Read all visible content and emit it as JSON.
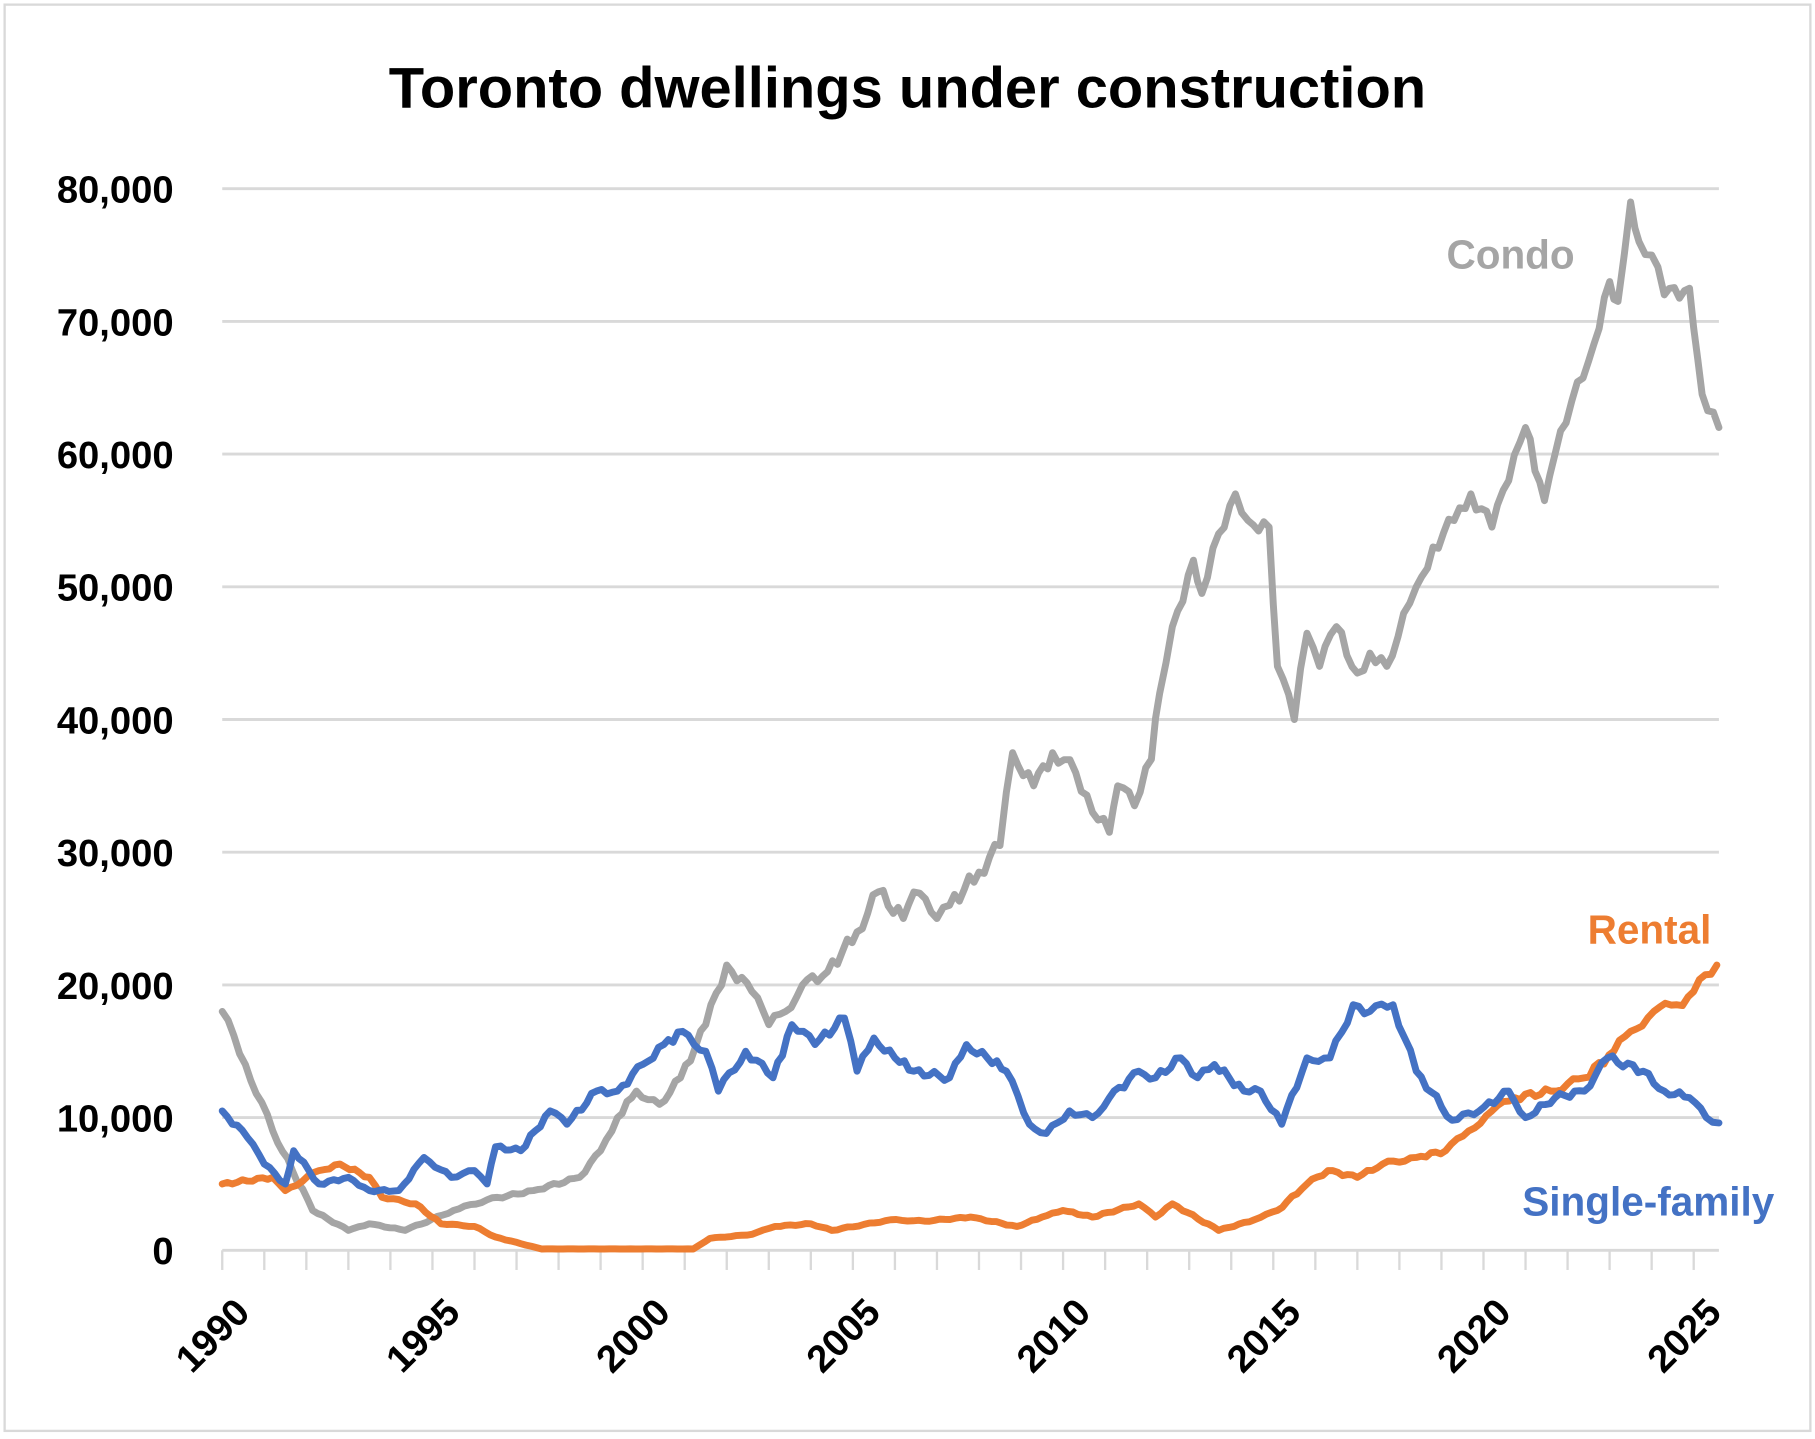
{
  "chart_data": {
    "type": "line",
    "title": "Toronto dwellings under construction",
    "xlabel": "",
    "ylabel": "",
    "xlim": [
      1990,
      2025.6
    ],
    "ylim": [
      0,
      80000
    ],
    "grid": true,
    "legend": "inline labels",
    "x_ticks": [
      "1990",
      "1995",
      "2000",
      "2005",
      "2010",
      "2015",
      "2020",
      "2025"
    ],
    "x_tick_values": [
      1990,
      1995,
      2000,
      2005,
      2010,
      2015,
      2020,
      2025
    ],
    "y_ticks": [
      "0",
      "10,000",
      "20,000",
      "30,000",
      "40,000",
      "50,000",
      "60,000",
      "70,000",
      "80,000"
    ],
    "y_tick_values": [
      0,
      10000,
      20000,
      30000,
      40000,
      50000,
      60000,
      70000,
      80000
    ],
    "series": [
      {
        "name": "Condo",
        "color": "#a5a5a5",
        "points": [
          [
            1990,
            18000
          ],
          [
            1990.55,
            14000
          ],
          [
            1991.2,
            9000
          ],
          [
            1992.15,
            3000
          ],
          [
            1993,
            1500
          ],
          [
            1993.5,
            2000
          ],
          [
            1994.35,
            1500
          ],
          [
            1995.5,
            3000
          ],
          [
            1996.3,
            3800
          ],
          [
            1997.4,
            4500
          ],
          [
            1998.5,
            5500
          ],
          [
            1999,
            7500
          ],
          [
            1999.4,
            10000
          ],
          [
            1999.85,
            12000
          ],
          [
            2000.4,
            11000
          ],
          [
            2000.9,
            13000
          ],
          [
            2001.5,
            17000
          ],
          [
            2002,
            21500
          ],
          [
            2002.6,
            19500
          ],
          [
            2003,
            17000
          ],
          [
            2003.4,
            18000
          ],
          [
            2003.8,
            20000
          ],
          [
            2004.4,
            21000
          ],
          [
            2005.1,
            24000
          ],
          [
            2005.6,
            27000
          ],
          [
            2006.2,
            25000
          ],
          [
            2006.45,
            27000
          ],
          [
            2007,
            25000
          ],
          [
            2007.3,
            26000
          ],
          [
            2008,
            28500
          ],
          [
            2008.5,
            30500
          ],
          [
            2008.8,
            37500
          ],
          [
            2009.3,
            35000
          ],
          [
            2009.75,
            37500
          ],
          [
            2010.3,
            36000
          ],
          [
            2010.7,
            33000
          ],
          [
            2011.1,
            31500
          ],
          [
            2011.3,
            35000
          ],
          [
            2011.7,
            33500
          ],
          [
            2012.1,
            37000
          ],
          [
            2012.3,
            42000
          ],
          [
            2012.6,
            47000
          ],
          [
            2013.1,
            52000
          ],
          [
            2013.3,
            49500
          ],
          [
            2013.7,
            54000
          ],
          [
            2014.1,
            57000
          ],
          [
            2014.4,
            55000
          ],
          [
            2014.9,
            54500
          ],
          [
            2015.1,
            44000
          ],
          [
            2015.5,
            40000
          ],
          [
            2015.8,
            46500
          ],
          [
            2016.1,
            44000
          ],
          [
            2016.5,
            47000
          ],
          [
            2017,
            43500
          ],
          [
            2017.3,
            45000
          ],
          [
            2017.7,
            44000
          ],
          [
            2018.1,
            48000
          ],
          [
            2018.4,
            50000
          ],
          [
            2018.8,
            53000
          ],
          [
            2019.3,
            55000
          ],
          [
            2019.7,
            57000
          ],
          [
            2020.2,
            54500
          ],
          [
            2020.6,
            58000
          ],
          [
            2021,
            62000
          ],
          [
            2021.45,
            56500
          ],
          [
            2021.7,
            60000
          ],
          [
            2022.1,
            64000
          ],
          [
            2022.5,
            67000
          ],
          [
            2023,
            73000
          ],
          [
            2023.2,
            71500
          ],
          [
            2023.5,
            79000
          ],
          [
            2023.7,
            76000
          ],
          [
            2024,
            75000
          ],
          [
            2024.3,
            72000
          ],
          [
            2024.9,
            72500
          ],
          [
            2025,
            69500
          ],
          [
            2025.2,
            64500
          ],
          [
            2025.6,
            62000
          ]
        ]
      },
      {
        "name": "Rental",
        "color": "#ed7d31",
        "points": [
          [
            1990,
            5000
          ],
          [
            1991.2,
            5500
          ],
          [
            1991.5,
            4500
          ],
          [
            1992.3,
            6000
          ],
          [
            1992.8,
            6500
          ],
          [
            1993.5,
            5500
          ],
          [
            1993.8,
            4000
          ],
          [
            1994.6,
            3500
          ],
          [
            1995.2,
            2000
          ],
          [
            1996,
            1800
          ],
          [
            1996.5,
            1000
          ],
          [
            1997.1,
            500
          ],
          [
            1997.6,
            100
          ],
          [
            2001.2,
            100
          ],
          [
            2001.6,
            900
          ],
          [
            2002.6,
            1200
          ],
          [
            2003.15,
            1800
          ],
          [
            2004,
            2000
          ],
          [
            2004.5,
            1500
          ],
          [
            2005.9,
            2300
          ],
          [
            2006.7,
            2200
          ],
          [
            2007.8,
            2500
          ],
          [
            2008.9,
            1800
          ],
          [
            2009.5,
            2500
          ],
          [
            2010,
            3000
          ],
          [
            2010.7,
            2500
          ],
          [
            2011.8,
            3500
          ],
          [
            2012.2,
            2500
          ],
          [
            2012.6,
            3500
          ],
          [
            2013.7,
            1500
          ],
          [
            2014.55,
            2300
          ],
          [
            2015.1,
            3000
          ],
          [
            2015.8,
            5000
          ],
          [
            2016.3,
            6000
          ],
          [
            2017,
            5500
          ],
          [
            2017.6,
            6500
          ],
          [
            2018.4,
            7000
          ],
          [
            2019.1,
            7500
          ],
          [
            2019.65,
            9000
          ],
          [
            2020.2,
            10500
          ],
          [
            2020.75,
            11500
          ],
          [
            2021.6,
            12000
          ],
          [
            2022.4,
            13000
          ],
          [
            2023.1,
            15000
          ],
          [
            2023.5,
            16500
          ],
          [
            2024.05,
            18000
          ],
          [
            2024.6,
            18500
          ],
          [
            2025,
            19500
          ],
          [
            2025.55,
            21500
          ]
        ]
      },
      {
        "name": "Single-family",
        "color": "#4472c4",
        "points": [
          [
            1990,
            10500
          ],
          [
            1990.6,
            8500
          ],
          [
            1991,
            6500
          ],
          [
            1991.5,
            5000
          ],
          [
            1991.7,
            7500
          ],
          [
            1992.3,
            5000
          ],
          [
            1993,
            5500
          ],
          [
            1993.5,
            4500
          ],
          [
            1994.2,
            4500
          ],
          [
            1994.8,
            7000
          ],
          [
            1995.45,
            5500
          ],
          [
            1996,
            6000
          ],
          [
            1996.3,
            5000
          ],
          [
            1996.5,
            7800
          ],
          [
            1997.1,
            7500
          ],
          [
            1997.8,
            10500
          ],
          [
            1998.2,
            9500
          ],
          [
            1998.9,
            12000
          ],
          [
            1999.4,
            12000
          ],
          [
            2000,
            14000
          ],
          [
            2000.5,
            15500
          ],
          [
            2000.95,
            16500
          ],
          [
            2001.5,
            15000
          ],
          [
            2001.8,
            12000
          ],
          [
            2002.45,
            15000
          ],
          [
            2003.1,
            13000
          ],
          [
            2003.55,
            17000
          ],
          [
            2004.1,
            15500
          ],
          [
            2004.8,
            17500
          ],
          [
            2005.1,
            13500
          ],
          [
            2005.5,
            16000
          ],
          [
            2006,
            14500
          ],
          [
            2006.45,
            13500
          ],
          [
            2007.3,
            13000
          ],
          [
            2007.7,
            15500
          ],
          [
            2008.2,
            14500
          ],
          [
            2008.65,
            13500
          ],
          [
            2009.2,
            9500
          ],
          [
            2009.6,
            8800
          ],
          [
            2010.15,
            10500
          ],
          [
            2010.7,
            10000
          ],
          [
            2011.1,
            11500
          ],
          [
            2011.8,
            13500
          ],
          [
            2012.2,
            13000
          ],
          [
            2012.8,
            14500
          ],
          [
            2013.2,
            13000
          ],
          [
            2013.6,
            14000
          ],
          [
            2014.3,
            12000
          ],
          [
            2014.7,
            12000
          ],
          [
            2015.2,
            9500
          ],
          [
            2015.8,
            14500
          ],
          [
            2016.35,
            14500
          ],
          [
            2016.9,
            18500
          ],
          [
            2017.3,
            18000
          ],
          [
            2017.85,
            18500
          ],
          [
            2018.4,
            13500
          ],
          [
            2019.25,
            9800
          ],
          [
            2019.9,
            10500
          ],
          [
            2020.6,
            12000
          ],
          [
            2021,
            10000
          ],
          [
            2021.7,
            11500
          ],
          [
            2022.4,
            12000
          ],
          [
            2022.95,
            14500
          ],
          [
            2023.8,
            13500
          ],
          [
            2024.3,
            12000
          ],
          [
            2024.9,
            11500
          ],
          [
            2025.3,
            10000
          ],
          [
            2025.6,
            9600
          ]
        ]
      }
    ]
  }
}
